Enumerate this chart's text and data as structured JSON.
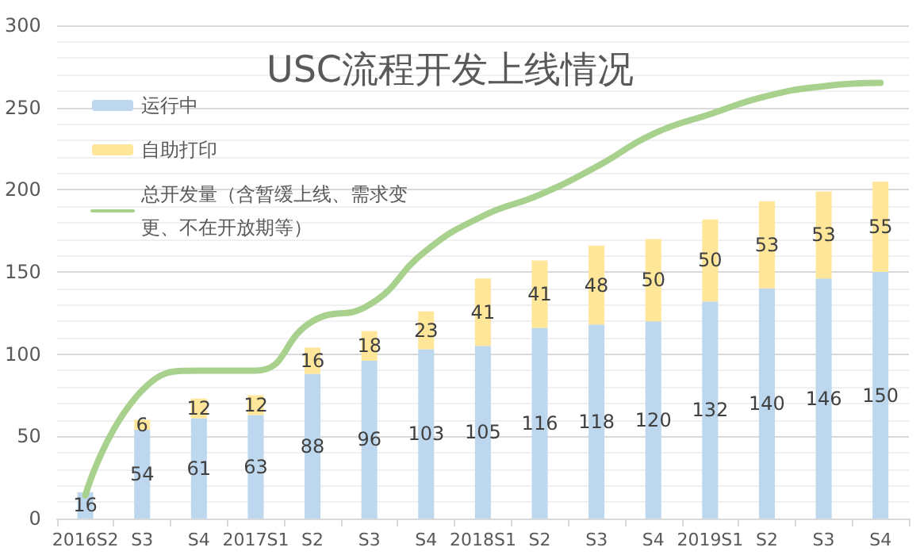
{
  "chart_data": {
    "type": "bar",
    "title": "USC流程开发上线情况",
    "categories": [
      "2016S2",
      "S3",
      "S4",
      "2017S1",
      "S2",
      "S3",
      "S4",
      "2018S1",
      "S2",
      "S3",
      "S4",
      "2019S1",
      "S2",
      "S3",
      "S4"
    ],
    "series": [
      {
        "name": "运行中",
        "color": "#bdd7ee",
        "values": [
          16,
          54,
          61,
          63,
          88,
          96,
          103,
          105,
          116,
          118,
          120,
          132,
          140,
          146,
          150
        ],
        "value_labels": [
          "16",
          "54",
          "61",
          "63",
          "88",
          "96",
          "103",
          "105",
          "116",
          "118",
          "120",
          "132",
          "140",
          "146",
          "150"
        ]
      },
      {
        "name": "自助打印",
        "color": "#ffe699",
        "values": [
          null,
          6,
          12,
          12,
          16,
          18,
          23,
          41,
          41,
          48,
          50,
          50,
          53,
          53,
          55
        ],
        "value_labels": [
          null,
          "6",
          "12",
          "12",
          "16",
          "18",
          "23",
          "41",
          "41",
          "48",
          "50",
          "50",
          "53",
          "53",
          "55"
        ]
      },
      {
        "name": "总开发量（含暂缓上线、需求变更、不在开放期等）",
        "type": "line",
        "color": "#a9d18e",
        "values": [
          14,
          78,
          90,
          90,
          120,
          130,
          163,
          184,
          197,
          214,
          234,
          246,
          257,
          263,
          265
        ]
      }
    ],
    "stacked": true,
    "ylim": [
      0,
      300
    ],
    "yticks": [
      0,
      50,
      100,
      150,
      200,
      250,
      300
    ],
    "grid": "y",
    "legend": "top left",
    "marker": "none",
    "line_style": "solid"
  }
}
